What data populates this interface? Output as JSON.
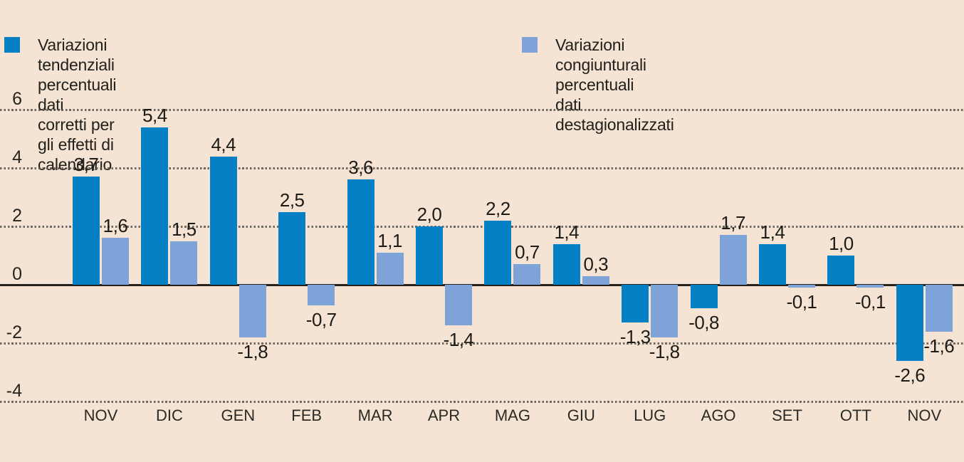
{
  "canvas": {
    "background": "#f5e4d3"
  },
  "legend": [
    {
      "line1": "Variazioni tendenziali percentuali",
      "line2": "dati corretti per gli effetti di calendario",
      "color": "#0680c4"
    },
    {
      "line1": "Variazioni congiunturali percentuali",
      "line2": "dati destagionalizzati",
      "color": "#7da3d8"
    }
  ],
  "chart_data": {
    "type": "bar",
    "title": "",
    "categories": [
      "NOV",
      "DIC",
      "GEN",
      "FEB",
      "MAR",
      "APR",
      "MAG",
      "GIU",
      "LUG",
      "AGO",
      "SET",
      "OTT",
      "NOV"
    ],
    "series": [
      {
        "name": "Variazioni tendenziali percentuali - dati corretti per gli effetti di calendario",
        "key": "tendenziali",
        "color": "#0680c4",
        "values": [
          3.7,
          5.4,
          4.4,
          2.5,
          3.6,
          2.0,
          2.2,
          1.4,
          -1.3,
          -0.8,
          1.4,
          1.0,
          -2.6
        ],
        "labels": [
          "3,7",
          "5,4",
          "4,4",
          "2,5",
          "3,6",
          "2,0",
          "2,2",
          "1,4",
          "-1,3",
          "-0,8",
          "1,4",
          "1,0",
          "-2,6"
        ]
      },
      {
        "name": "Variazioni congiunturali percentuali - dati destagionalizzati",
        "key": "congiunturali",
        "color": "#7da3d8",
        "values": [
          1.6,
          1.5,
          -1.8,
          -0.7,
          1.1,
          -1.4,
          0.7,
          0.3,
          -1.8,
          1.7,
          -0.1,
          -0.1,
          -1.6
        ],
        "labels": [
          "1,6",
          "1,5",
          "-1,8",
          "-0,7",
          "1,1",
          "-1,4",
          "0,7",
          "0,3",
          "-1,8",
          "1,7",
          "-0,1",
          "-0,1",
          "-1,6"
        ]
      }
    ],
    "y_axis": {
      "ticks": [
        6,
        4,
        2,
        0,
        -2,
        -4
      ],
      "tick_labels": [
        "6",
        "4",
        "2",
        "0",
        "-2",
        "-4"
      ],
      "min": -4,
      "max": 6
    },
    "grid": "horizontal-dotted",
    "legend_position": "top",
    "decimal_separator": ","
  }
}
